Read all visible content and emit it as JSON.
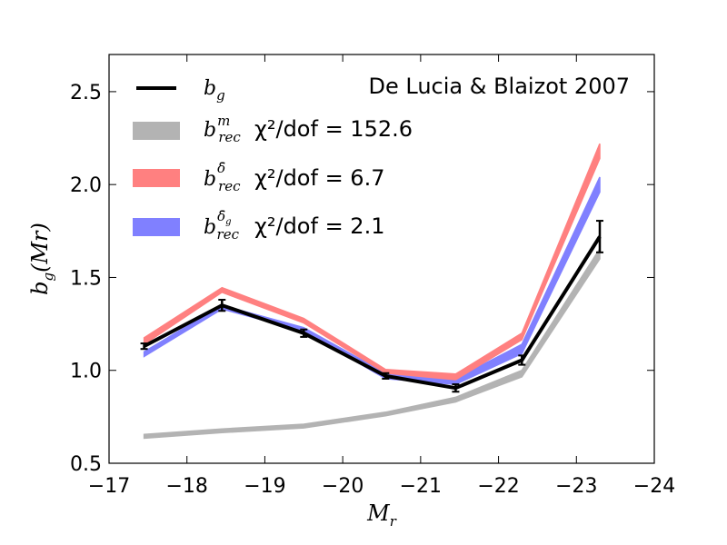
{
  "chart_data": {
    "type": "line",
    "title": "",
    "xlabel": "M_r",
    "ylabel": "b_g(Mr)",
    "xlim": [
      -17,
      -24
    ],
    "ylim": [
      0.5,
      2.7
    ],
    "x_ticks": [
      -17,
      -18,
      -19,
      -20,
      -21,
      -22,
      -23,
      -24
    ],
    "x_tick_labels": [
      "−17",
      "−18",
      "−19",
      "−20",
      "−21",
      "−22",
      "−23",
      "−24"
    ],
    "y_ticks": [
      0.5,
      1.0,
      1.5,
      2.0,
      2.5
    ],
    "y_tick_labels": [
      "0.5",
      "1.0",
      "1.5",
      "2.0",
      "2.5"
    ],
    "annotation": "De Lucia & Blaizot 2007",
    "legend_position": "upper-left",
    "x": [
      -17.45,
      -18.45,
      -19.5,
      -20.55,
      -21.45,
      -22.3,
      -23.3
    ],
    "series": [
      {
        "name": "b_g",
        "kind": "line-errorbars",
        "color": "#000000",
        "values": [
          1.13,
          1.35,
          1.2,
          0.97,
          0.905,
          1.055,
          1.72
        ],
        "errors": [
          0.015,
          0.03,
          0.02,
          0.015,
          0.02,
          0.025,
          0.085
        ]
      },
      {
        "name": "b_rec^m",
        "chi2_label": "χ²/dof = 152.6",
        "kind": "band",
        "color": "#b3b3b3",
        "lower": [
          0.635,
          0.665,
          0.69,
          0.755,
          0.83,
          0.965,
          1.6
        ],
        "upper": [
          0.655,
          0.685,
          0.71,
          0.775,
          0.855,
          1.0,
          1.655
        ]
      },
      {
        "name": "b_rec^δ̄",
        "chi2_label": "χ²/dof = 6.7",
        "kind": "band",
        "color": "#ff8080",
        "lower": [
          1.14,
          1.42,
          1.255,
          0.985,
          0.95,
          1.165,
          2.14
        ],
        "upper": [
          1.175,
          1.445,
          1.28,
          1.005,
          0.98,
          1.2,
          2.22
        ]
      },
      {
        "name": "b_rec^δ̄_g",
        "chi2_label": "χ²/dof = 2.1",
        "kind": "band",
        "color": "#8080ff",
        "lower": [
          1.075,
          1.33,
          1.21,
          0.955,
          0.925,
          1.09,
          1.96
        ],
        "upper": [
          1.1,
          1.35,
          1.23,
          0.985,
          0.955,
          1.14,
          2.04
        ]
      }
    ]
  }
}
